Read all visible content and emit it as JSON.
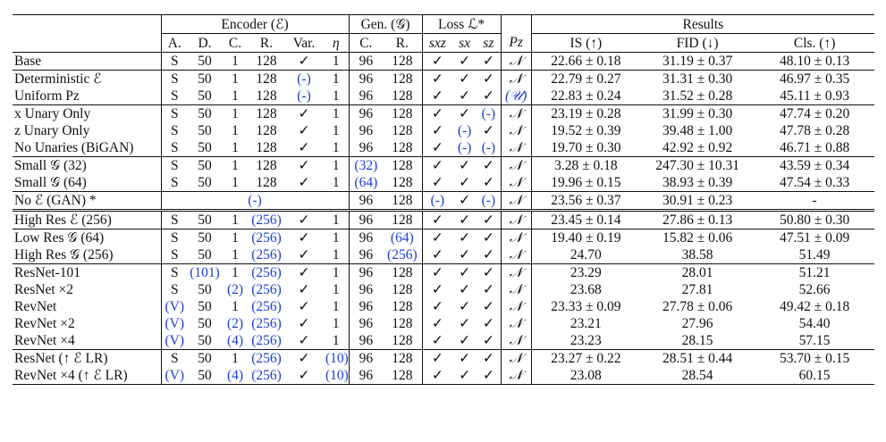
{
  "header": {
    "groups": {
      "encoder": "Encoder (ℰ)",
      "generator": "Gen. (𝒢)",
      "loss": "Loss ℒ*",
      "results": "Results"
    },
    "columns": {
      "a": "A.",
      "d": "D.",
      "c": "C.",
      "r": "R.",
      "var": "Var.",
      "eta": "η",
      "gc": "C.",
      "gr": "R.",
      "sxz": "sxz",
      "sx": "sx",
      "sz": "sz",
      "pz": "Pz",
      "is": "IS (↑)",
      "fid": "FID (↓)",
      "cls": "Cls. (↑)"
    }
  },
  "rows": [
    {
      "label": "Base",
      "a": "S",
      "d": "50",
      "c": "1",
      "r": "128",
      "var": "✓",
      "eta": "1",
      "gc": "96",
      "gr": "128",
      "sxz": "✓",
      "sx": "✓",
      "sz": "✓",
      "pz": "𝒩",
      "is": "22.66 ± 0.18",
      "fid": "31.19 ± 0.37",
      "cls": "48.10 ± 0.13"
    },
    {
      "label": "Deterministic ℰ",
      "a": "S",
      "d": "50",
      "c": "1",
      "r": "128",
      "var": "(-)",
      "eta": "1",
      "gc": "96",
      "gr": "128",
      "sxz": "✓",
      "sx": "✓",
      "sz": "✓",
      "pz": "𝒩",
      "is": "22.79 ± 0.27",
      "fid": "31.31 ± 0.30",
      "cls": "46.97 ± 0.35"
    },
    {
      "label": "Uniform Pz",
      "a": "S",
      "d": "50",
      "c": "1",
      "r": "128",
      "var": "(-)",
      "eta": "1",
      "gc": "96",
      "gr": "128",
      "sxz": "✓",
      "sx": "✓",
      "sz": "✓",
      "pz": "(𝒰)",
      "is": "22.83 ± 0.24",
      "fid": "31.52 ± 0.28",
      "cls": "45.11 ± 0.93"
    },
    {
      "label": "x Unary Only",
      "a": "S",
      "d": "50",
      "c": "1",
      "r": "128",
      "var": "✓",
      "eta": "1",
      "gc": "96",
      "gr": "128",
      "sxz": "✓",
      "sx": "✓",
      "sz": "(-)",
      "pz": "𝒩",
      "is": "23.19 ± 0.28",
      "fid": "31.99 ± 0.30",
      "cls": "47.74 ± 0.20"
    },
    {
      "label": "z Unary Only",
      "a": "S",
      "d": "50",
      "c": "1",
      "r": "128",
      "var": "✓",
      "eta": "1",
      "gc": "96",
      "gr": "128",
      "sxz": "✓",
      "sx": "(-)",
      "sz": "✓",
      "pz": "𝒩",
      "is": "19.52 ± 0.39",
      "fid": "39.48 ± 1.00",
      "cls": "47.78 ± 0.28"
    },
    {
      "label": "No Unaries (BiGAN)",
      "a": "S",
      "d": "50",
      "c": "1",
      "r": "128",
      "var": "✓",
      "eta": "1",
      "gc": "96",
      "gr": "128",
      "sxz": "✓",
      "sx": "(-)",
      "sz": "(-)",
      "pz": "𝒩",
      "is": "19.70 ± 0.30",
      "fid": "42.92 ± 0.92",
      "cls": "46.71 ± 0.88"
    },
    {
      "label": "Small 𝒢 (32)",
      "a": "S",
      "d": "50",
      "c": "1",
      "r": "128",
      "var": "✓",
      "eta": "1",
      "gc": "(32)",
      "gr": "128",
      "sxz": "✓",
      "sx": "✓",
      "sz": "✓",
      "pz": "𝒩",
      "is": "3.28 ± 0.18",
      "fid": "247.30 ± 10.31",
      "cls": "43.59 ± 0.34"
    },
    {
      "label": "Small 𝒢 (64)",
      "a": "S",
      "d": "50",
      "c": "1",
      "r": "128",
      "var": "✓",
      "eta": "1",
      "gc": "(64)",
      "gr": "128",
      "sxz": "✓",
      "sx": "✓",
      "sz": "✓",
      "pz": "𝒩",
      "is": "19.96 ± 0.15",
      "fid": "38.93 ± 0.39",
      "cls": "47.54 ± 0.33"
    },
    {
      "label": "No ℰ (GAN) *",
      "encoder_span": "(-)",
      "gc": "96",
      "gr": "128",
      "sxz": "(-)",
      "sx": "✓",
      "sz": "(-)",
      "pz": "𝒩",
      "is": "23.56 ± 0.37",
      "fid": "30.91 ± 0.23",
      "cls": "-"
    },
    {
      "label": "High Res ℰ (256)",
      "a": "S",
      "d": "50",
      "c": "1",
      "r": "(256)",
      "var": "✓",
      "eta": "1",
      "gc": "96",
      "gr": "128",
      "sxz": "✓",
      "sx": "✓",
      "sz": "✓",
      "pz": "𝒩",
      "is": "23.45 ± 0.14",
      "fid": "27.86 ± 0.13",
      "cls": "50.80 ± 0.30"
    },
    {
      "label": "Low Res 𝒢 (64)",
      "a": "S",
      "d": "50",
      "c": "1",
      "r": "(256)",
      "var": "✓",
      "eta": "1",
      "gc": "96",
      "gr": "(64)",
      "sxz": "✓",
      "sx": "✓",
      "sz": "✓",
      "pz": "𝒩",
      "is": "19.40 ± 0.19",
      "fid": "15.82 ± 0.06",
      "cls": "47.51 ± 0.09"
    },
    {
      "label": "High Res 𝒢 (256)",
      "a": "S",
      "d": "50",
      "c": "1",
      "r": "(256)",
      "var": "✓",
      "eta": "1",
      "gc": "96",
      "gr": "(256)",
      "sxz": "✓",
      "sx": "✓",
      "sz": "✓",
      "pz": "𝒩",
      "is": "24.70",
      "fid": "38.58",
      "cls": "51.49"
    },
    {
      "label": "ResNet-101",
      "a": "S",
      "d": "(101)",
      "c": "1",
      "r": "(256)",
      "var": "✓",
      "eta": "1",
      "gc": "96",
      "gr": "128",
      "sxz": "✓",
      "sx": "✓",
      "sz": "✓",
      "pz": "𝒩",
      "is": "23.29",
      "fid": "28.01",
      "cls": "51.21"
    },
    {
      "label": "ResNet ×2",
      "a": "S",
      "d": "50",
      "c": "(2)",
      "r": "(256)",
      "var": "✓",
      "eta": "1",
      "gc": "96",
      "gr": "128",
      "sxz": "✓",
      "sx": "✓",
      "sz": "✓",
      "pz": "𝒩",
      "is": "23.68",
      "fid": "27.81",
      "cls": "52.66"
    },
    {
      "label": "RevNet",
      "a": "(V)",
      "d": "50",
      "c": "1",
      "r": "(256)",
      "var": "✓",
      "eta": "1",
      "gc": "96",
      "gr": "128",
      "sxz": "✓",
      "sx": "✓",
      "sz": "✓",
      "pz": "𝒩",
      "is": "23.33 ± 0.09",
      "fid": "27.78 ± 0.06",
      "cls": "49.42 ± 0.18"
    },
    {
      "label": "RevNet ×2",
      "a": "(V)",
      "d": "50",
      "c": "(2)",
      "r": "(256)",
      "var": "✓",
      "eta": "1",
      "gc": "96",
      "gr": "128",
      "sxz": "✓",
      "sx": "✓",
      "sz": "✓",
      "pz": "𝒩",
      "is": "23.21",
      "fid": "27.96",
      "cls": "54.40"
    },
    {
      "label": "RevNet ×4",
      "a": "(V)",
      "d": "50",
      "c": "(4)",
      "r": "(256)",
      "var": "✓",
      "eta": "1",
      "gc": "96",
      "gr": "128",
      "sxz": "✓",
      "sx": "✓",
      "sz": "✓",
      "pz": "𝒩",
      "is": "23.23",
      "fid": "28.15",
      "cls": "57.15"
    },
    {
      "label": "ResNet (↑ ℰ LR)",
      "a": "S",
      "d": "50",
      "c": "1",
      "r": "(256)",
      "var": "✓",
      "eta": "(10)",
      "gc": "96",
      "gr": "128",
      "sxz": "✓",
      "sx": "✓",
      "sz": "✓",
      "pz": "𝒩",
      "is": "23.27 ± 0.22",
      "fid": "28.51 ± 0.44",
      "cls": "53.70 ± 0.15"
    },
    {
      "label": "RevNet ×4 (↑ ℰ LR)",
      "a": "(V)",
      "d": "50",
      "c": "(4)",
      "r": "(256)",
      "var": "✓",
      "eta": "(10)",
      "gc": "96",
      "gr": "128",
      "sxz": "✓",
      "sx": "✓",
      "sz": "✓",
      "pz": "𝒩",
      "is": "23.08",
      "fid": "28.54",
      "cls": "60.15"
    }
  ],
  "group_breaks": {
    "midrule_before": [
      1,
      3,
      6,
      8,
      10,
      12,
      17
    ],
    "double_before": [
      9
    ]
  }
}
